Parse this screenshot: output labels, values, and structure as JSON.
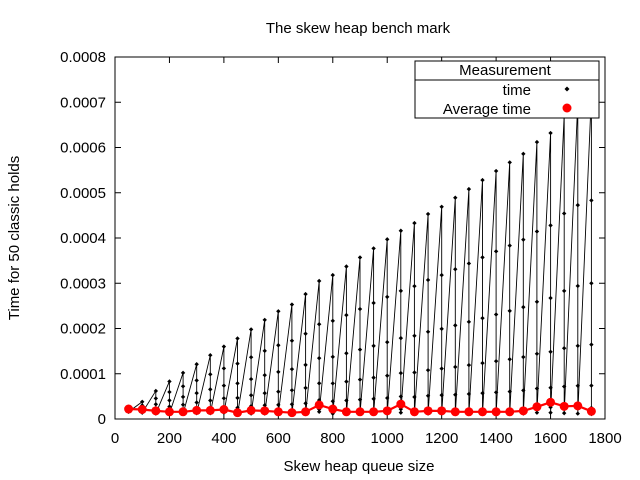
{
  "chart_data": {
    "type": "scatter",
    "title": "The skew heap bench mark",
    "xlabel": "Skew heap queue size",
    "ylabel": "Time for 50 classic holds",
    "xlim": [
      0,
      1800
    ],
    "ylim": [
      0,
      0.0008
    ],
    "xticks": [
      "0",
      "200",
      "400",
      "600",
      "800",
      "1000",
      "1200",
      "1400",
      "1600",
      "1800"
    ],
    "yticks": [
      "0",
      "0.0001",
      "0.0002",
      "0.0003",
      "0.0004",
      "0.0005",
      "0.0006",
      "0.0007",
      "0.0008"
    ],
    "grid": false,
    "legend": {
      "title": "Measurement",
      "placement": "top-right",
      "entries": [
        "time",
        "Average time"
      ]
    },
    "colors": {
      "time": "#000000",
      "average": "#ff0000"
    },
    "series": [
      {
        "name": "time",
        "x": [
          50,
          100,
          150,
          200,
          250,
          300,
          350,
          400,
          450,
          500,
          550,
          600,
          650,
          700,
          750,
          800,
          850,
          900,
          950,
          1000,
          1050,
          1100,
          1150,
          1200,
          1250,
          1300,
          1350,
          1400,
          1450,
          1500,
          1550,
          1600,
          1650,
          1700,
          1750
        ],
        "peak": [
          2.4e-05,
          3.8e-05,
          6.2e-05,
          8.3e-05,
          0.000102,
          0.000121,
          0.000141,
          0.00016,
          0.000178,
          0.000198,
          0.000219,
          0.000238,
          0.000253,
          0.000276,
          0.000305,
          0.000318,
          0.000337,
          0.000357,
          0.000377,
          0.000397,
          0.000416,
          0.000433,
          0.000453,
          0.000469,
          0.000489,
          0.000508,
          0.000528,
          0.000548,
          0.000567,
          0.000586,
          0.000612,
          0.000632,
          0.000672,
          0.0007,
          0.000716
        ],
        "typical": [
          1.6e-05,
          1.4e-05,
          1.2e-05,
          1.2e-05,
          1.2e-05,
          1.3e-05,
          1.3e-05,
          1.4e-05,
          1e-05,
          1.2e-05,
          1.2e-05,
          1.1e-05,
          1.1e-05,
          1.1e-05,
          1.6e-05,
          1.2e-05,
          1.2e-05,
          1.2e-05,
          1.2e-05,
          1.2e-05,
          1.4e-05,
          1.1e-05,
          1.2e-05,
          1.2e-05,
          1.1e-05,
          1.1e-05,
          1.1e-05,
          1.1e-05,
          1.1e-05,
          1.2e-05,
          1.4e-05,
          1.4e-05,
          1.3e-05,
          1.2e-05,
          1.1e-05
        ],
        "per_size": 7
      },
      {
        "name": "Average time",
        "x": [
          50,
          100,
          150,
          200,
          250,
          300,
          350,
          400,
          450,
          500,
          550,
          600,
          650,
          700,
          750,
          800,
          850,
          900,
          950,
          1000,
          1050,
          1100,
          1150,
          1200,
          1250,
          1300,
          1350,
          1400,
          1450,
          1500,
          1550,
          1600,
          1650,
          1700,
          1750
        ],
        "values": [
          2.2e-05,
          2.1e-05,
          1.8e-05,
          1.6e-05,
          1.6e-05,
          1.9e-05,
          1.9e-05,
          2.1e-05,
          1.4e-05,
          1.9e-05,
          1.8e-05,
          1.6e-05,
          1.4e-05,
          1.6e-05,
          3.1e-05,
          2.2e-05,
          1.6e-05,
          1.6e-05,
          1.6e-05,
          1.8e-05,
          3.3e-05,
          1.6e-05,
          1.8e-05,
          1.8e-05,
          1.6e-05,
          1.6e-05,
          1.6e-05,
          1.6e-05,
          1.6e-05,
          1.8e-05,
          2.7e-05,
          3.7e-05,
          2.8e-05,
          2.9e-05,
          1.7e-05
        ]
      }
    ]
  }
}
